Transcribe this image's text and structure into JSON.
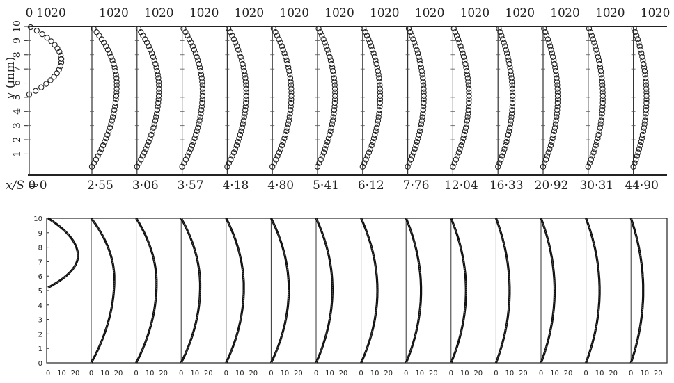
{
  "chart_data": [
    {
      "type": "scatter",
      "panel": "top",
      "ylabel": "y (mm)",
      "ylim": [
        0,
        10
      ],
      "yticks": [
        1,
        2,
        3,
        4,
        5,
        6,
        7,
        8,
        9,
        10
      ],
      "xticks_top": [
        "0",
        "10",
        "20"
      ],
      "case_axis_label": "x/S =",
      "cases": [
        {
          "label": "0·0",
          "profile": {
            "ymin": 5.2,
            "ymax": 10.0,
            "peak": 22,
            "ypeak": 7.6
          }
        },
        {
          "label": "2·55",
          "profile": {
            "ymin": 0.1,
            "ymax": 10.0,
            "peak": 17,
            "ypeak": 5.9
          }
        },
        {
          "label": "3·06",
          "profile": {
            "ymin": 0.1,
            "ymax": 10.0,
            "peak": 15,
            "ypeak": 5.6
          }
        },
        {
          "label": "3·57",
          "profile": {
            "ymin": 0.1,
            "ymax": 10.0,
            "peak": 14,
            "ypeak": 5.4
          }
        },
        {
          "label": "4·18",
          "profile": {
            "ymin": 0.1,
            "ymax": 10.0,
            "peak": 13,
            "ypeak": 5.3
          }
        },
        {
          "label": "4·80",
          "profile": {
            "ymin": 0.1,
            "ymax": 10.0,
            "peak": 13,
            "ypeak": 5.2
          }
        },
        {
          "label": "5·41",
          "profile": {
            "ymin": 0.1,
            "ymax": 10.0,
            "peak": 12,
            "ypeak": 5.2
          }
        },
        {
          "label": "6·12",
          "profile": {
            "ymin": 0.1,
            "ymax": 10.0,
            "peak": 12,
            "ypeak": 5.1
          }
        },
        {
          "label": "7·76",
          "profile": {
            "ymin": 0.1,
            "ymax": 10.0,
            "peak": 11,
            "ypeak": 5.1
          }
        },
        {
          "label": "12·04",
          "profile": {
            "ymin": 0.1,
            "ymax": 10.0,
            "peak": 11,
            "ypeak": 5.0
          }
        },
        {
          "label": "16·33",
          "profile": {
            "ymin": 0.1,
            "ymax": 10.0,
            "peak": 10,
            "ypeak": 5.0
          }
        },
        {
          "label": "20·92",
          "profile": {
            "ymin": 0.1,
            "ymax": 10.0,
            "peak": 10,
            "ypeak": 5.0
          }
        },
        {
          "label": "30·31",
          "profile": {
            "ymin": 0.1,
            "ymax": 10.0,
            "peak": 10,
            "ypeak": 5.0
          }
        },
        {
          "label": "44·90",
          "profile": {
            "ymin": 0.1,
            "ymax": 10.0,
            "peak": 9,
            "ypeak": 5.0
          }
        }
      ]
    },
    {
      "type": "line",
      "panel": "bottom",
      "ylim": [
        0,
        10
      ],
      "yticks": [
        "0",
        "1",
        "2",
        "3",
        "4",
        "5",
        "6",
        "7",
        "8",
        "9",
        "10"
      ],
      "xticks_bottom": [
        "0",
        "10",
        "20"
      ],
      "cases": [
        {
          "profile": {
            "ymin": 5.2,
            "ymax": 10.0,
            "peak": 22,
            "ypeak": 7.4
          }
        },
        {
          "profile": {
            "ymin": 0.0,
            "ymax": 10.0,
            "peak": 17,
            "ypeak": 5.8
          }
        },
        {
          "profile": {
            "ymin": 0.0,
            "ymax": 10.0,
            "peak": 15,
            "ypeak": 5.5
          }
        },
        {
          "profile": {
            "ymin": 0.0,
            "ymax": 10.0,
            "peak": 14,
            "ypeak": 5.3
          }
        },
        {
          "profile": {
            "ymin": 0.0,
            "ymax": 10.0,
            "peak": 13,
            "ypeak": 5.2
          }
        },
        {
          "profile": {
            "ymin": 0.0,
            "ymax": 10.0,
            "peak": 13,
            "ypeak": 5.1
          }
        },
        {
          "profile": {
            "ymin": 0.0,
            "ymax": 10.0,
            "peak": 12,
            "ypeak": 5.1
          }
        },
        {
          "profile": {
            "ymin": 0.0,
            "ymax": 10.0,
            "peak": 12,
            "ypeak": 5.0
          }
        },
        {
          "profile": {
            "ymin": 0.0,
            "ymax": 10.0,
            "peak": 11,
            "ypeak": 5.0
          }
        },
        {
          "profile": {
            "ymin": 0.0,
            "ymax": 10.0,
            "peak": 11,
            "ypeak": 5.0
          }
        },
        {
          "profile": {
            "ymin": 0.0,
            "ymax": 10.0,
            "peak": 10,
            "ypeak": 5.0
          }
        },
        {
          "profile": {
            "ymin": 0.0,
            "ymax": 10.0,
            "peak": 10,
            "ypeak": 5.0
          }
        },
        {
          "profile": {
            "ymin": 0.0,
            "ymax": 10.0,
            "peak": 10,
            "ypeak": 5.0
          }
        },
        {
          "profile": {
            "ymin": 0.0,
            "ymax": 10.0,
            "peak": 9,
            "ypeak": 5.0
          }
        }
      ]
    }
  ]
}
